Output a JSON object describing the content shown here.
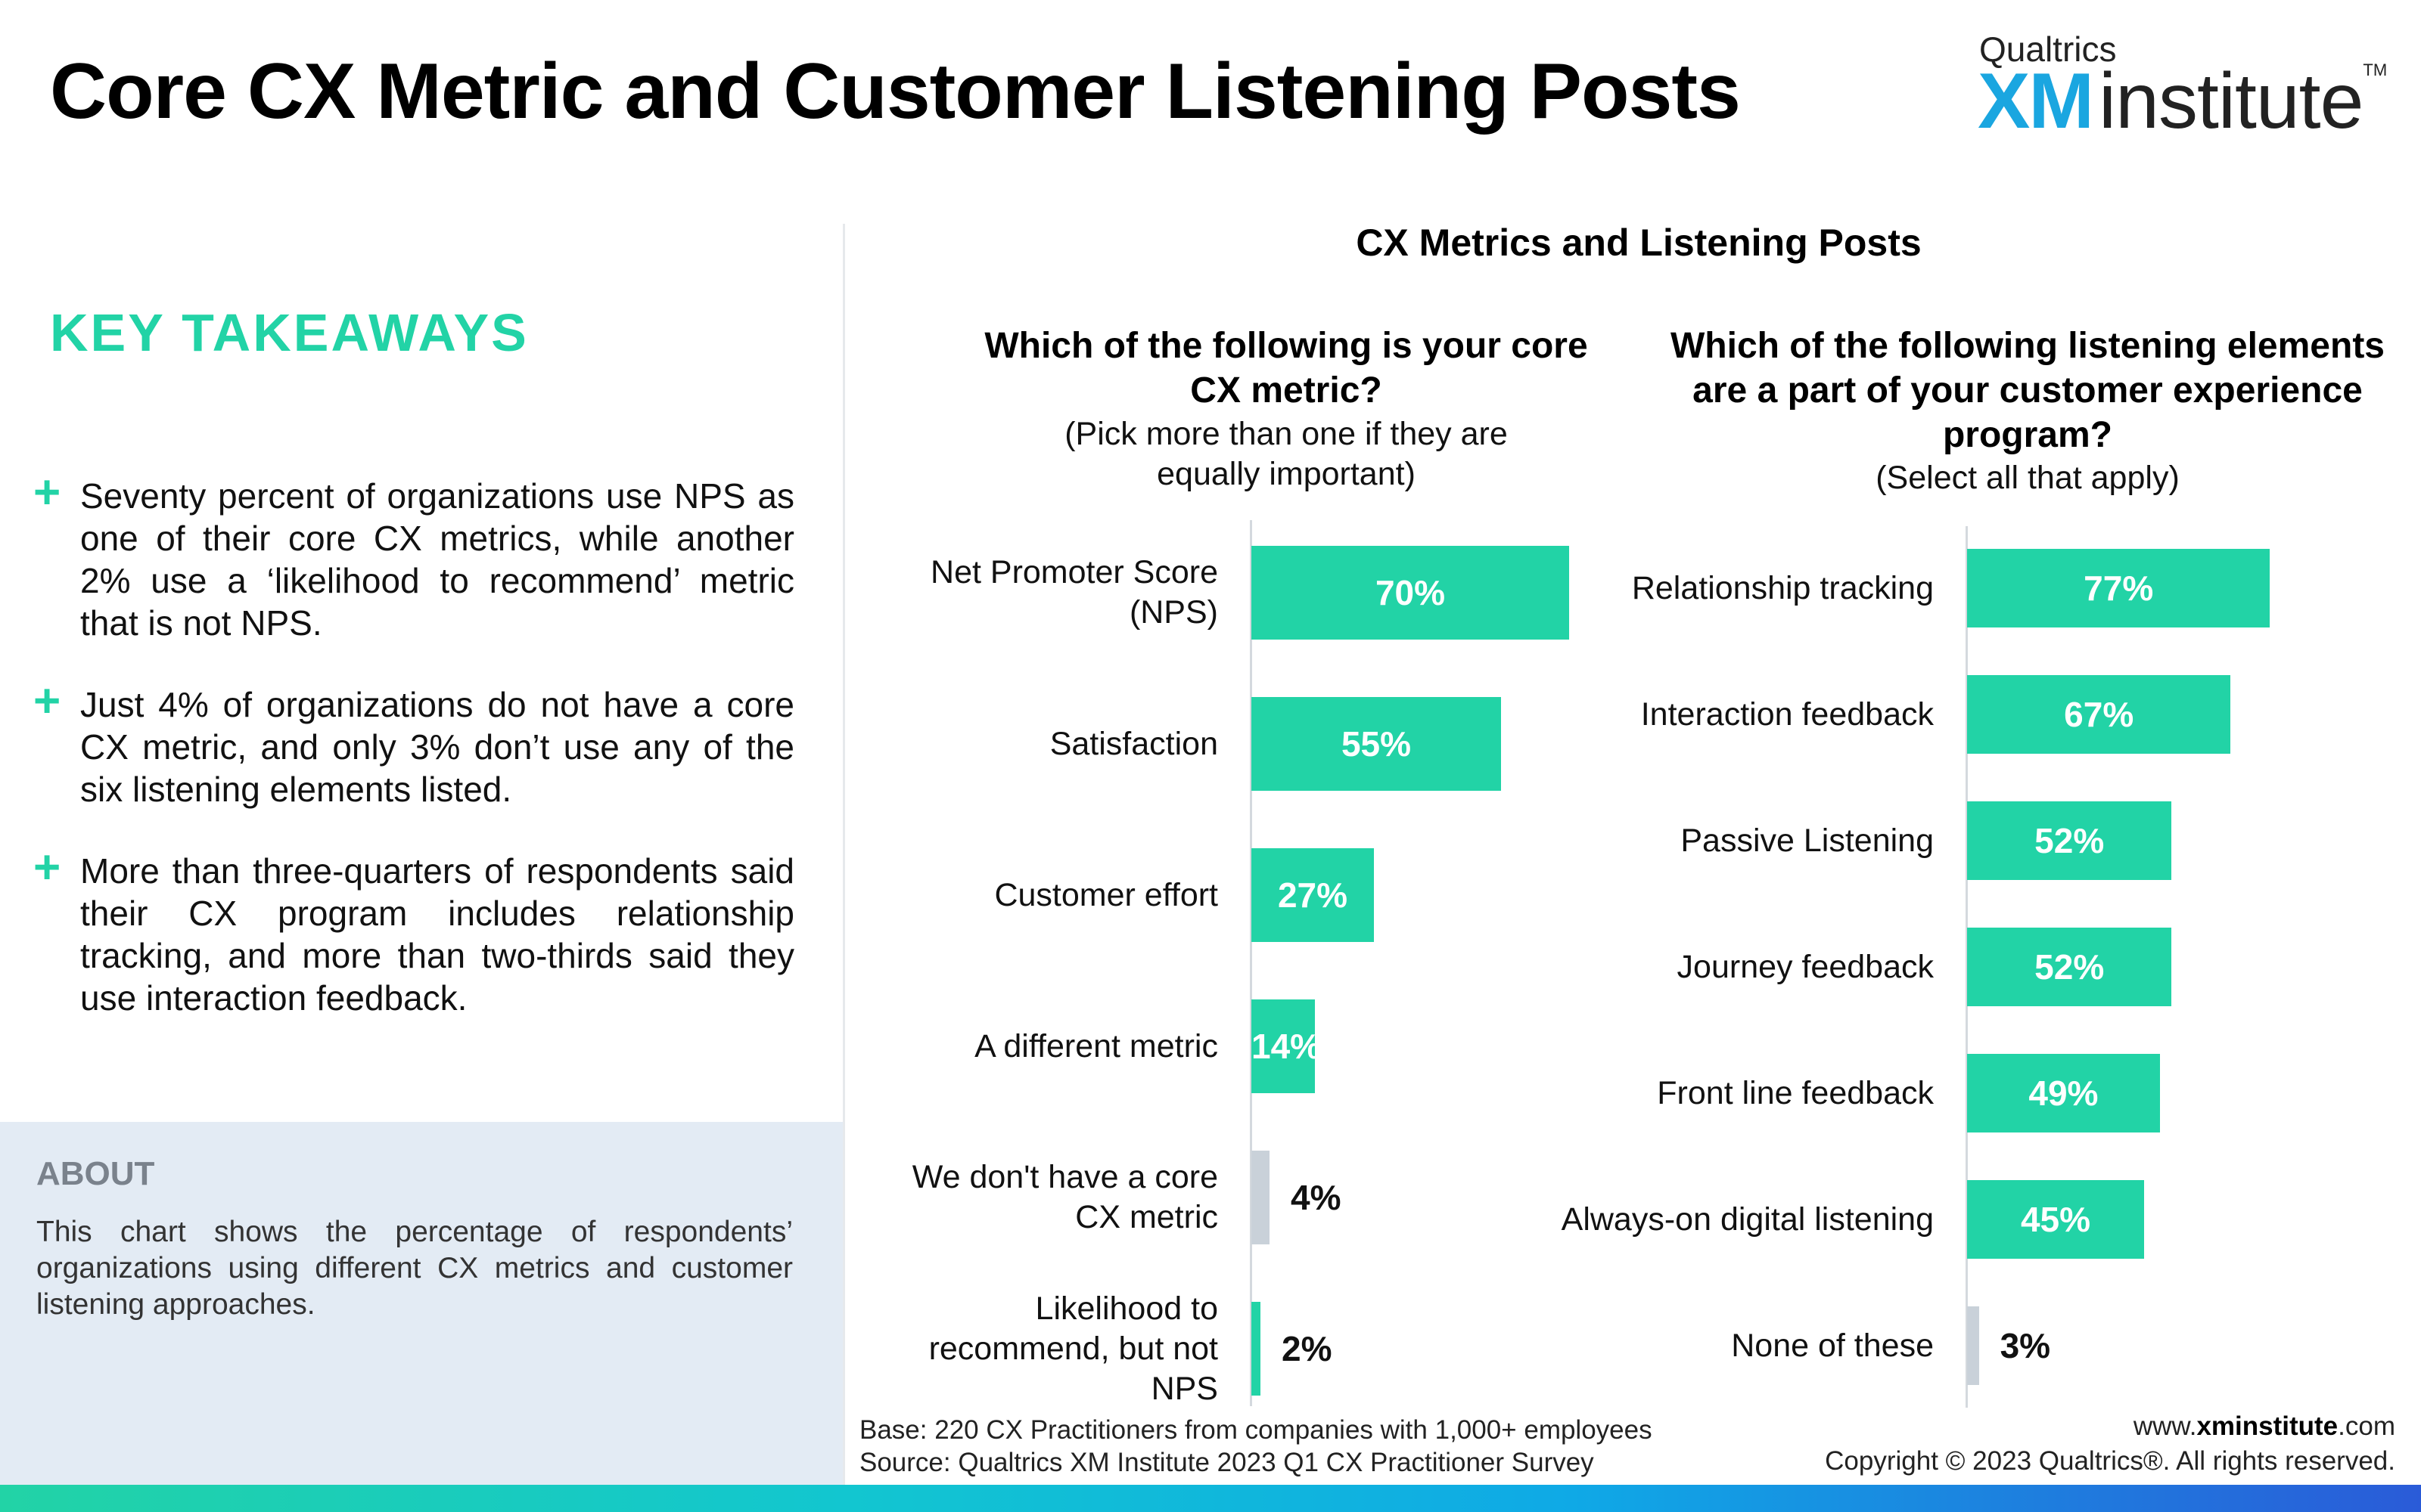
{
  "header": {
    "title": "Core CX Metric and Customer Listening Posts",
    "logo_top": "Qualtrics",
    "logo_xm": "XM",
    "logo_institute": "institute",
    "logo_tm": "TM"
  },
  "takeaways": {
    "heading": "KEY TAKEAWAYS",
    "items": [
      "Seventy percent of organizations use NPS as one of their core CX metrics, while another 2% use a ‘likelihood to recommend’ metric that is not NPS.",
      "Just 4% of organizations do not have a core CX metric, and only 3% don’t use any of the six listening elements listed.",
      "More than three-quarters of respondents said their CX program includes relationship tracking, and more than two-thirds said they use interaction feedback."
    ]
  },
  "about": {
    "heading": "ABOUT",
    "text": "This chart shows the percentage of respondents’ organizations using different CX metrics and customer listening approaches."
  },
  "chart_title": "CX Metrics and Listening Posts",
  "colors": {
    "accent": "#22d3a6",
    "neutral_bar": "#c9d1d9",
    "brand_blue": "#1aa6e0"
  },
  "chart_data": [
    {
      "type": "bar",
      "orientation": "horizontal",
      "title": "Which of the following is your core CX metric?",
      "subtitle": "(Pick more than one if they are equally important)",
      "categories": [
        "Net Promoter Score (NPS)",
        "Satisfaction",
        "Customer effort",
        "A different metric",
        "We don't have a core CX metric",
        "Likelihood to recommend, but not NPS"
      ],
      "values": [
        70,
        55,
        27,
        14,
        4,
        2
      ],
      "labels": [
        "70%",
        "55%",
        "27%",
        "14%",
        "4%",
        "2%"
      ],
      "bar_colors": [
        "#22d3a6",
        "#22d3a6",
        "#22d3a6",
        "#22d3a6",
        "#c9d1d9",
        "#22d3a6"
      ],
      "unit": "%"
    },
    {
      "type": "bar",
      "orientation": "horizontal",
      "title": "Which of the following listening elements are a part of your customer experience program?",
      "subtitle": "(Select all that apply)",
      "categories": [
        "Relationship tracking",
        "Interaction feedback",
        "Passive Listening",
        "Journey feedback",
        "Front line feedback",
        "Always-on digital listening",
        "None of these"
      ],
      "values": [
        77,
        67,
        52,
        52,
        49,
        45,
        3
      ],
      "labels": [
        "77%",
        "67%",
        "52%",
        "52%",
        "49%",
        "45%",
        "3%"
      ],
      "bar_colors": [
        "#22d3a6",
        "#22d3a6",
        "#22d3a6",
        "#22d3a6",
        "#22d3a6",
        "#22d3a6",
        "#c9d1d9"
      ],
      "unit": "%"
    }
  ],
  "footer": {
    "base": "Base: 220 CX Practitioners from companies with 1,000+ employees",
    "source": "Source: Qualtrics XM Institute 2023 Q1 CX Practitioner Survey",
    "url_prefix": "www.",
    "url_bold": "xminstitute",
    "url_suffix": ".com",
    "copyright": "Copyright © 2023 Qualtrics®. All rights reserved."
  }
}
